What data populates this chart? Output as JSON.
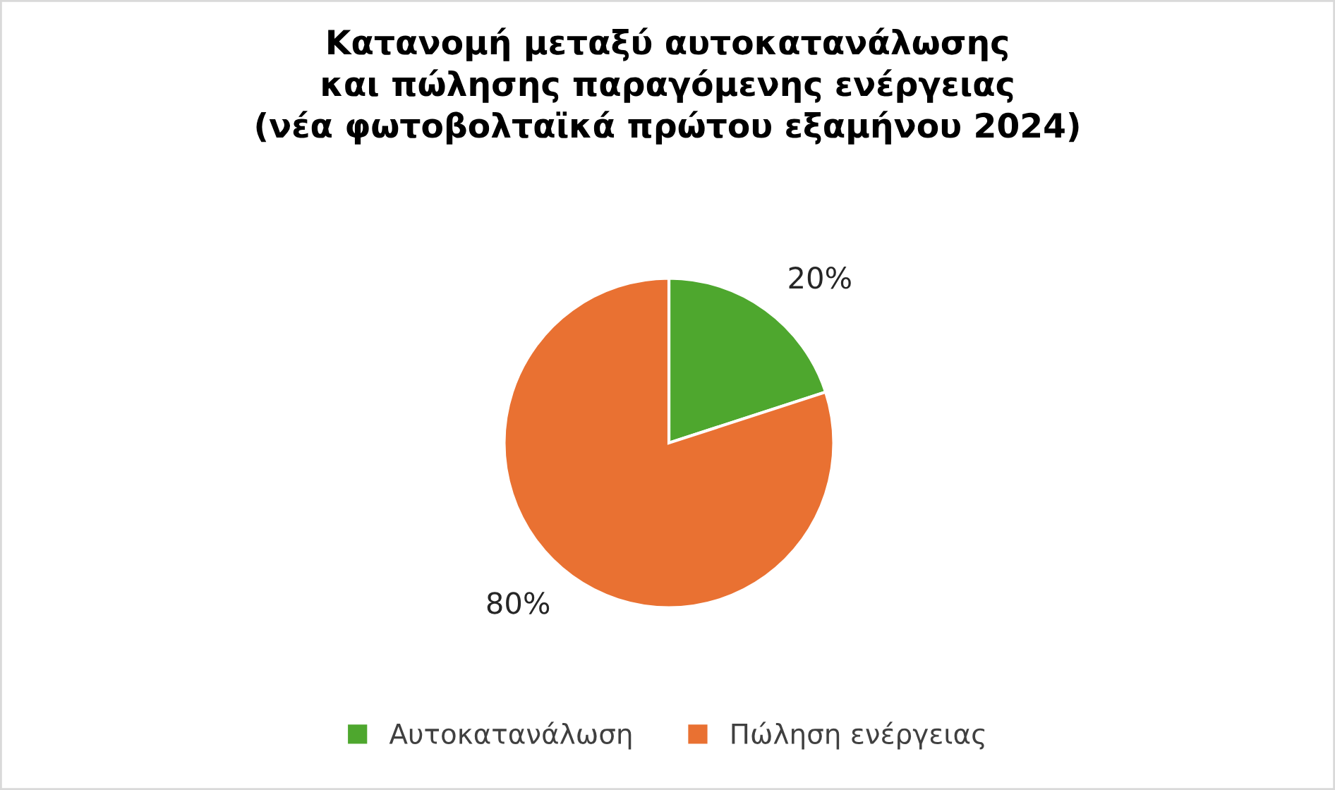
{
  "chart_data": {
    "type": "pie",
    "title": "Κατανομή μεταξύ αυτοκατανάλωσης\nκαι πώλησης παραγόμενης ενέργειας\n(νέα φωτοβολταϊκά πρώτου εξαμήνου 2024)",
    "categories": [
      "Αυτοκατανάλωση",
      "Πώληση ενέργειας"
    ],
    "values": [
      20,
      80
    ],
    "colors": [
      "#4ea72e",
      "#e97132"
    ],
    "value_labels": [
      "20%",
      "80%"
    ],
    "legend": "bottom"
  }
}
